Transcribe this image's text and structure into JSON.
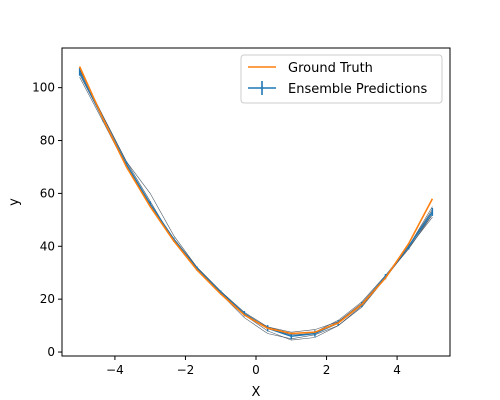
{
  "chart_data": {
    "type": "line",
    "title": "",
    "xlabel": "X",
    "ylabel": "y",
    "xlim": [
      -5.5,
      5.5
    ],
    "ylim": [
      -1.5,
      115
    ],
    "xticks": [
      -4,
      -2,
      0,
      2,
      4
    ],
    "yticks": [
      0,
      20,
      40,
      60,
      80,
      100
    ],
    "xtick_labels": [
      "−4",
      "−2",
      "0",
      "2",
      "4"
    ],
    "ytick_labels": [
      "0",
      "20",
      "40",
      "60",
      "80",
      "100"
    ],
    "legend": {
      "position": "top-right",
      "entries": [
        "Ground Truth",
        "Ensemble Predictions"
      ]
    },
    "colors": {
      "ground_truth": "#ff7f0e",
      "ensemble": "#1f77b4",
      "members": "#2f3f4f"
    },
    "x": [
      -5.0,
      -4.33,
      -3.67,
      -3.0,
      -2.33,
      -1.67,
      -1.0,
      -0.33,
      0.33,
      1.0,
      1.67,
      2.33,
      3.0,
      3.67,
      4.33,
      5.0
    ],
    "series": [
      {
        "name": "Ground Truth",
        "values": [
          108,
          88,
          70,
          55,
          42,
          31,
          22,
          14,
          9,
          7,
          7.5,
          11,
          18,
          28,
          41,
          58
        ]
      },
      {
        "name": "Ensemble Predictions",
        "values": [
          106,
          88,
          71,
          56,
          42.5,
          31.5,
          22.5,
          14.5,
          9,
          6,
          7,
          11,
          18,
          28.5,
          40,
          53
        ],
        "error": [
          1.5,
          1,
          1,
          1,
          0.8,
          0.8,
          0.8,
          1,
          1.2,
          1.2,
          1.2,
          1,
          1,
          1,
          1.2,
          1.5
        ]
      }
    ],
    "members": [
      [
        104,
        87,
        70,
        56,
        43,
        32,
        23,
        15,
        9.5,
        7,
        7.5,
        12,
        19,
        29,
        40,
        52
      ],
      [
        107,
        89,
        72,
        57,
        42,
        31,
        22,
        13,
        7,
        5,
        6.5,
        10,
        17,
        28,
        40,
        54
      ],
      [
        105,
        88,
        71,
        55,
        42,
        31,
        22,
        14,
        8,
        4.5,
        5.5,
        10,
        17.5,
        28,
        39.5,
        51
      ],
      [
        107,
        89,
        72,
        60,
        44,
        32,
        23,
        14.5,
        9,
        6.5,
        7,
        11.5,
        18.5,
        28.5,
        39,
        52
      ],
      [
        106,
        88,
        70,
        55,
        42,
        31,
        22,
        14,
        9.5,
        7.5,
        8.5,
        11.5,
        18,
        28,
        40,
        55
      ]
    ]
  }
}
